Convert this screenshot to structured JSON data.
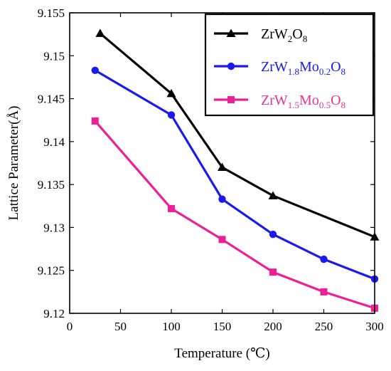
{
  "chart_data": {
    "type": "line",
    "xlabel": "Temperature (℃)",
    "ylabel": "Lattice Parameter(Å)",
    "xlim": [
      0,
      300
    ],
    "ylim": [
      9.12,
      9.155
    ],
    "xticks": [
      0,
      50,
      100,
      150,
      200,
      250,
      300
    ],
    "yticks": [
      9.12,
      9.125,
      9.13,
      9.135,
      9.14,
      9.145,
      9.15,
      9.155
    ],
    "xtick_labels": [
      "0",
      "50",
      "100",
      "150",
      "200",
      "250",
      "300"
    ],
    "ytick_labels": [
      "9.12",
      "9.125",
      "9.13",
      "9.135",
      "9.14",
      "9.145",
      "9.15",
      "9.155"
    ],
    "grid": false,
    "legend": "top-right",
    "series": [
      {
        "name": "ZrW2O8",
        "label_parts": [
          [
            "ZrW",
            "n"
          ],
          [
            "2",
            "sub"
          ],
          [
            "O",
            "n"
          ],
          [
            "8",
            "sub"
          ]
        ],
        "color": "#000000",
        "text_color": "#000000",
        "marker": "triangle",
        "x": [
          30,
          100,
          150,
          200,
          300
        ],
        "y": [
          9.1526,
          9.1456,
          9.137,
          9.1337,
          9.1289
        ]
      },
      {
        "name": "ZrW1.8Mo0.2O8",
        "label_parts": [
          [
            "ZrW",
            "n"
          ],
          [
            "1.8",
            "sub"
          ],
          [
            "Mo",
            "n"
          ],
          [
            "0.2",
            "sub"
          ],
          [
            "O",
            "n"
          ],
          [
            "8",
            "sub"
          ]
        ],
        "color": "#1a1aee",
        "text_color": "#1a1aee",
        "marker": "circle",
        "x": [
          25,
          100,
          150,
          200,
          250,
          300
        ],
        "y": [
          9.1483,
          9.1431,
          9.1333,
          9.1292,
          9.1263,
          9.124
        ]
      },
      {
        "name": "ZrW1.5Mo0.5O8",
        "label_parts": [
          [
            "ZrW",
            "n"
          ],
          [
            "1.5",
            "sub"
          ],
          [
            "Mo",
            "n"
          ],
          [
            "0.5",
            "sub"
          ],
          [
            "O",
            "n"
          ],
          [
            "8",
            "sub"
          ]
        ],
        "color": "#ee1e96",
        "text_color": "#e8368f",
        "marker": "square",
        "x": [
          25,
          100,
          150,
          200,
          250,
          300
        ],
        "y": [
          9.1424,
          9.1322,
          9.1286,
          9.1248,
          9.1225,
          9.1206
        ]
      }
    ]
  }
}
